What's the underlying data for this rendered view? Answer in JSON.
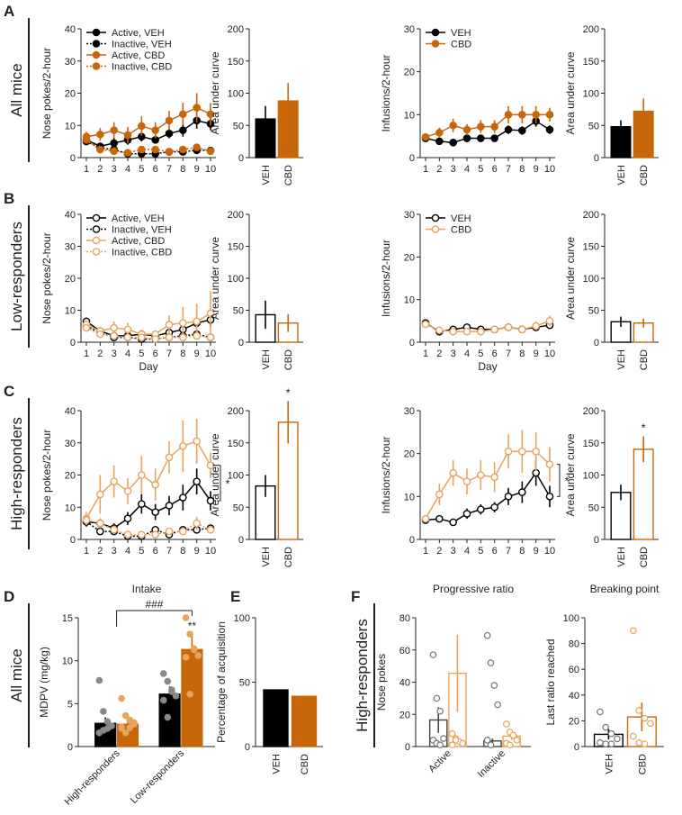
{
  "colors": {
    "veh": "#000000",
    "cbd": "#c8660a",
    "cbd_light": "#e8a35c",
    "text": "#222222"
  },
  "panel_labels": [
    "A",
    "B",
    "C",
    "D",
    "E",
    "F"
  ],
  "group_labels": {
    "A": "All mice",
    "B": "Low-responders",
    "C": "High-responders",
    "D": "All mice",
    "F": "High-responders"
  },
  "chart_data": [
    {
      "id": "A-nosepokes",
      "panel": "A",
      "type": "line",
      "ylabel": "Nose pokes/2-hour",
      "xlabel": "",
      "ylim": [
        0,
        40
      ],
      "yticks": [
        0,
        10,
        20,
        30,
        40
      ],
      "x": [
        1,
        2,
        3,
        4,
        5,
        6,
        7,
        8,
        9,
        10
      ],
      "legend": [
        "Active, VEH",
        "Inactive, VEH",
        "Active, CBD",
        "Inactive, CBD"
      ],
      "series": [
        {
          "name": "Active, VEH",
          "group": "VEH",
          "dash": false,
          "fill": true,
          "values": [
            5.5,
            3.5,
            4.5,
            5.5,
            6.5,
            5.5,
            7.5,
            8.5,
            11.5,
            10.5
          ],
          "err": [
            1,
            1,
            1.5,
            1.5,
            1.5,
            1,
            1.5,
            2,
            2.5,
            2
          ]
        },
        {
          "name": "Inactive, VEH",
          "group": "VEH",
          "dash": true,
          "fill": true,
          "values": [
            5,
            3,
            2.5,
            1.2,
            1.2,
            1.2,
            1.8,
            1.8,
            2.3,
            2.2
          ],
          "err": [
            1,
            0.7,
            0.6,
            0.5,
            0.5,
            0.4,
            0.5,
            0.5,
            0.6,
            0.6
          ]
        },
        {
          "name": "Active, CBD",
          "group": "CBD",
          "dash": false,
          "fill": true,
          "values": [
            6.5,
            7.2,
            8.5,
            7,
            9.8,
            8.5,
            11.5,
            13.5,
            15.5,
            13.5
          ],
          "err": [
            1.5,
            2,
            2.5,
            2.5,
            3,
            2.5,
            3,
            3.5,
            4.5,
            3.5
          ]
        },
        {
          "name": "Inactive, CBD",
          "group": "CBD",
          "dash": true,
          "fill": true,
          "values": [
            5.5,
            2.5,
            2,
            1.5,
            2.5,
            2.5,
            1.8,
            2.5,
            3.2,
            2
          ],
          "err": [
            1,
            0.7,
            0.6,
            0.5,
            0.8,
            0.7,
            0.5,
            0.7,
            1,
            0.6
          ]
        }
      ]
    },
    {
      "id": "A-auc1",
      "panel": "A",
      "type": "bar",
      "ylabel": "Area under curve",
      "ylim": [
        0,
        200
      ],
      "yticks": [
        0,
        50,
        100,
        150,
        200
      ],
      "categories": [
        "VEH",
        "CBD"
      ],
      "values": [
        60,
        88
      ],
      "err": [
        20,
        28
      ],
      "fill": true,
      "sig": [
        "",
        ""
      ]
    },
    {
      "id": "A-infusions",
      "panel": "A",
      "type": "line",
      "ylabel": "Infusions/2-hour",
      "xlabel": "",
      "ylim": [
        0,
        30
      ],
      "yticks": [
        0,
        10,
        20,
        30
      ],
      "x": [
        1,
        2,
        3,
        4,
        5,
        6,
        7,
        8,
        9,
        10
      ],
      "legend": [
        "VEH",
        "CBD"
      ],
      "series": [
        {
          "name": "VEH",
          "group": "VEH",
          "dash": false,
          "fill": true,
          "values": [
            4.5,
            3.8,
            3.5,
            4.5,
            4.5,
            4.5,
            6.5,
            6.3,
            8.5,
            6.5
          ],
          "err": [
            0.6,
            0.6,
            0.6,
            0.7,
            0.7,
            0.7,
            1,
            1,
            1.3,
            1
          ]
        },
        {
          "name": "CBD",
          "group": "CBD",
          "dash": false,
          "fill": true,
          "values": [
            4.8,
            5.8,
            7.5,
            6.5,
            7.2,
            7.2,
            10,
            10,
            10,
            10
          ],
          "err": [
            0.8,
            1.2,
            1.6,
            1.3,
            1.5,
            1.5,
            2,
            2,
            2,
            1.6
          ]
        }
      ]
    },
    {
      "id": "A-auc2",
      "panel": "A",
      "type": "bar",
      "ylabel": "Area under curve",
      "ylim": [
        0,
        200
      ],
      "yticks": [
        0,
        50,
        100,
        150,
        200
      ],
      "categories": [
        "VEH",
        "CBD"
      ],
      "values": [
        48,
        72
      ],
      "err": [
        10,
        20
      ],
      "fill": true,
      "sig": [
        "",
        ""
      ]
    },
    {
      "id": "B-nosepokes",
      "panel": "B",
      "type": "line",
      "ylabel": "Nose pokes/2-hour",
      "xlabel": "Day",
      "ylim": [
        0,
        40
      ],
      "yticks": [
        0,
        10,
        20,
        30,
        40
      ],
      "x": [
        1,
        2,
        3,
        4,
        5,
        6,
        7,
        8,
        9,
        10
      ],
      "legend": [
        "Active, VEH",
        "Inactive, VEH",
        "Active, CBD",
        "Inactive, CBD"
      ],
      "series": [
        {
          "name": "Active, VEH",
          "group": "VEH",
          "dash": false,
          "fill": false,
          "values": [
            6.5,
            3.5,
            2,
            2,
            2.5,
            2,
            3,
            4,
            6,
            7
          ],
          "err": [
            1.2,
            1,
            0.8,
            0.8,
            1,
            0.8,
            1,
            1.5,
            2,
            2
          ]
        },
        {
          "name": "Inactive, VEH",
          "group": "VEH",
          "dash": true,
          "fill": false,
          "values": [
            5,
            3,
            1.5,
            1.5,
            1,
            1,
            1.5,
            2,
            2.5,
            1.5
          ],
          "err": [
            1,
            0.8,
            0.5,
            0.5,
            0.4,
            0.4,
            0.5,
            0.6,
            0.8,
            0.5
          ]
        },
        {
          "name": "Active, CBD",
          "group": "CBD",
          "dash": false,
          "fill": false,
          "values": [
            5.5,
            3.5,
            4.5,
            4,
            2.5,
            2.5,
            5.5,
            6,
            6.5,
            9
          ],
          "err": [
            1.2,
            1,
            2,
            2,
            1.5,
            1.2,
            3,
            5,
            5.5,
            7
          ]
        },
        {
          "name": "Inactive, CBD",
          "group": "CBD",
          "dash": true,
          "fill": false,
          "values": [
            4.5,
            2.5,
            2,
            1.5,
            1.5,
            1,
            1.5,
            1.5,
            2,
            1.5
          ],
          "err": [
            1,
            0.8,
            0.6,
            0.5,
            0.5,
            0.4,
            0.5,
            0.5,
            0.8,
            0.5
          ]
        }
      ]
    },
    {
      "id": "B-auc1",
      "panel": "B",
      "type": "bar",
      "ylabel": "Area under curve",
      "ylim": [
        0,
        200
      ],
      "yticks": [
        0,
        50,
        100,
        150,
        200
      ],
      "categories": [
        "VEH",
        "CBD"
      ],
      "values": [
        43,
        30
      ],
      "err": [
        22,
        14
      ],
      "fill": false,
      "sig": [
        "",
        ""
      ]
    },
    {
      "id": "B-infusions",
      "panel": "B",
      "type": "line",
      "ylabel": "Infusions/2-hour",
      "xlabel": "Day",
      "ylim": [
        0,
        30
      ],
      "yticks": [
        0,
        10,
        20,
        30
      ],
      "x": [
        1,
        2,
        3,
        4,
        5,
        6,
        7,
        8,
        9,
        10
      ],
      "legend": [
        "VEH",
        "CBD"
      ],
      "series": [
        {
          "name": "VEH",
          "group": "VEH",
          "dash": false,
          "fill": false,
          "values": [
            4.5,
            2.5,
            3,
            3.5,
            3,
            3,
            3.5,
            3,
            3.5,
            4
          ],
          "err": [
            0.6,
            0.5,
            0.6,
            0.7,
            0.6,
            0.6,
            0.8,
            0.6,
            0.8,
            0.8
          ]
        },
        {
          "name": "CBD",
          "group": "CBD",
          "dash": false,
          "fill": false,
          "values": [
            4.2,
            2.8,
            2.5,
            2.5,
            2.5,
            3,
            3.5,
            3,
            3.8,
            5
          ],
          "err": [
            0.6,
            0.5,
            0.5,
            0.6,
            0.6,
            0.6,
            0.8,
            0.6,
            1,
            1.2
          ]
        }
      ]
    },
    {
      "id": "B-auc2",
      "panel": "B",
      "type": "bar",
      "ylabel": "Area under curve",
      "ylim": [
        0,
        200
      ],
      "yticks": [
        0,
        50,
        100,
        150,
        200
      ],
      "categories": [
        "VEH",
        "CBD"
      ],
      "values": [
        32,
        30
      ],
      "err": [
        8,
        7
      ],
      "fill": false,
      "sig": [
        "",
        ""
      ]
    },
    {
      "id": "C-nosepokes",
      "panel": "C",
      "type": "line",
      "ylabel": "Nose pokes/2-hour",
      "xlabel": "",
      "ylim": [
        0,
        40
      ],
      "yticks": [
        0,
        10,
        20,
        30,
        40
      ],
      "x": [
        1,
        2,
        3,
        4,
        5,
        6,
        7,
        8,
        9,
        10
      ],
      "legend": [],
      "bracket": {
        "from": 12,
        "to": 23,
        "label": "*"
      },
      "series": [
        {
          "name": "Active, VEH",
          "group": "VEH",
          "dash": false,
          "fill": false,
          "values": [
            5.5,
            5,
            3.5,
            6.5,
            11,
            8.5,
            10.5,
            13,
            18,
            12
          ],
          "err": [
            1.5,
            1.5,
            1.5,
            2,
            3,
            2.5,
            3,
            4,
            4,
            3
          ]
        },
        {
          "name": "Inactive, VEH",
          "group": "VEH",
          "dash": true,
          "fill": false,
          "values": [
            5.5,
            2.5,
            2.5,
            1,
            1,
            3,
            1.5,
            3,
            3,
            3.5
          ],
          "err": [
            1,
            0.8,
            0.8,
            0.5,
            0.5,
            1,
            0.6,
            1,
            1,
            1
          ]
        },
        {
          "name": "Active, CBD",
          "group": "CBD",
          "dash": false,
          "fill": false,
          "values": [
            6.5,
            14,
            18,
            15,
            20,
            17,
            25.5,
            29,
            30.5,
            23
          ],
          "err": [
            2,
            6,
            5,
            4,
            6,
            5,
            5,
            8,
            7,
            4
          ]
        },
        {
          "name": "Inactive, CBD",
          "group": "CBD",
          "dash": true,
          "fill": false,
          "values": [
            6,
            5,
            3,
            1.5,
            1.5,
            1.5,
            2.5,
            2.5,
            5,
            3
          ],
          "err": [
            1.5,
            1.5,
            1,
            0.5,
            0.6,
            0.5,
            1,
            1,
            2,
            1
          ]
        }
      ]
    },
    {
      "id": "C-auc1",
      "panel": "C",
      "type": "bar",
      "ylabel": "Area under curve",
      "ylim": [
        0,
        200
      ],
      "yticks": [
        0,
        50,
        100,
        150,
        200
      ],
      "categories": [
        "VEH",
        "CBD"
      ],
      "values": [
        83,
        182
      ],
      "err": [
        17,
        33
      ],
      "fill": false,
      "sig": [
        "",
        "*"
      ]
    },
    {
      "id": "C-infusions",
      "panel": "C",
      "type": "line",
      "ylabel": "Infusions/2-hour",
      "xlabel": "",
      "ylim": [
        0,
        30
      ],
      "yticks": [
        0,
        10,
        20,
        30
      ],
      "x": [
        1,
        2,
        3,
        4,
        5,
        6,
        7,
        8,
        9,
        10
      ],
      "legend": [],
      "bracket": {
        "from": 10,
        "to": 17.5,
        "label": "*"
      },
      "series": [
        {
          "name": "VEH",
          "group": "VEH",
          "dash": false,
          "fill": false,
          "values": [
            4.5,
            4.8,
            4,
            6,
            7,
            7.5,
            10,
            11,
            15.5,
            10
          ],
          "err": [
            0.5,
            0.6,
            0.7,
            1.2,
            1.2,
            1.2,
            2,
            2.5,
            3,
            2.5
          ]
        },
        {
          "name": "CBD",
          "group": "CBD",
          "dash": false,
          "fill": false,
          "values": [
            4.8,
            10.5,
            15.5,
            13.5,
            15,
            14.5,
            20.5,
            20.5,
            20.5,
            17.5
          ],
          "err": [
            0.6,
            2.5,
            3,
            3,
            3.5,
            3.5,
            4,
            5,
            4.5,
            4
          ]
        }
      ]
    },
    {
      "id": "C-auc2",
      "panel": "C",
      "type": "bar",
      "ylabel": "Area under curve",
      "ylim": [
        0,
        200
      ],
      "yticks": [
        0,
        50,
        100,
        150,
        200
      ],
      "categories": [
        "VEH",
        "CBD"
      ],
      "values": [
        73,
        140
      ],
      "err": [
        12,
        20
      ],
      "fill": false,
      "sig": [
        "",
        "*"
      ]
    },
    {
      "id": "D-intake",
      "panel": "D",
      "type": "bar",
      "title": "Intake",
      "ylabel": "MDPV (mg/kg)",
      "ylim": [
        0,
        15
      ],
      "yticks": [
        0,
        5,
        10,
        15
      ],
      "groups": [
        "High-responders",
        "Low-responders"
      ],
      "annotation": "###",
      "annotation2": "**",
      "series": [
        {
          "name": "VEH",
          "values": [
            2.7,
            6.1
          ],
          "err": [
            0.7,
            0.9
          ]
        },
        {
          "name": "CBD",
          "values": [
            2.6,
            11.3
          ],
          "err": [
            0.5,
            1.8
          ]
        }
      ],
      "points": [
        [
          [
            7.7,
            4.1,
            2.9,
            2.4,
            1.6,
            1.9,
            2.1,
            2.4
          ],
          [
            5.6,
            3.6,
            3.1,
            2.6,
            2.3,
            1.6,
            2.2,
            2.8,
            2.1
          ]
        ],
        [
          [
            8.5,
            7.6,
            6.6,
            5.9,
            5.4,
            3.4,
            6.4
          ],
          [
            15,
            13.1,
            11.4,
            10.6,
            10.4,
            6.1,
            11.3
          ]
        ]
      ]
    },
    {
      "id": "E-acquisition",
      "panel": "E",
      "type": "bar",
      "ylabel": "Percentage of acquisition",
      "ylim": [
        0,
        100
      ],
      "yticks": [
        0,
        50,
        100
      ],
      "categories": [
        "VEH",
        "CBD"
      ],
      "values": [
        44,
        39
      ],
      "fill": true
    },
    {
      "id": "F-pr",
      "panel": "F",
      "type": "bar",
      "title": "Progressive ratio",
      "ylabel": "Nose pokes",
      "ylim": [
        0,
        80
      ],
      "yticks": [
        0,
        20,
        40,
        60,
        80
      ],
      "groups": [
        "Active",
        "Inactive"
      ],
      "series": [
        {
          "name": "VEH",
          "values": [
            16.5,
            3.5
          ],
          "err": [
            8,
            1.5
          ]
        },
        {
          "name": "CBD",
          "values": [
            45.5,
            6.5
          ],
          "err": [
            24,
            2.5
          ]
        }
      ],
      "points": [
        [
          [
            57,
            30,
            22,
            5,
            4,
            2,
            1
          ],
          [
            8,
            5,
            3,
            2,
            1,
            4
          ]
        ],
        [
          [
            69,
            52,
            38,
            26,
            4,
            1
          ],
          [
            14,
            9,
            7,
            4,
            2,
            1
          ]
        ]
      ]
    },
    {
      "id": "F-bp",
      "panel": "F",
      "type": "bar",
      "title": "Breaking point",
      "ylabel": "Last ratio reached",
      "ylim": [
        0,
        100
      ],
      "yticks": [
        0,
        20,
        40,
        60,
        80,
        100
      ],
      "categories": [
        "VEH",
        "CBD"
      ],
      "values": [
        9.5,
        23
      ],
      "err": [
        4,
        11
      ],
      "fill": false,
      "points": [
        [
          27,
          15,
          10,
          6,
          3,
          2,
          2
        ],
        [
          90,
          28,
          22,
          18,
          8,
          3,
          2
        ]
      ]
    }
  ]
}
